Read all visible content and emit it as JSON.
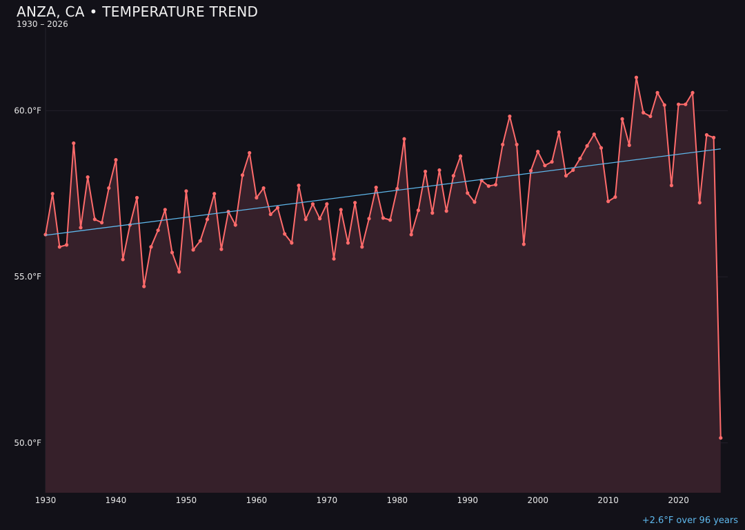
{
  "chart_data": {
    "type": "line",
    "title": "ANZA, CA • TEMPERATURE TREND",
    "subtitle": "1930 – 2026",
    "annotation": "+2.6°F over 96 years",
    "xlabel": "",
    "ylabel": "",
    "xlim": [
      1930,
      2027
    ],
    "ylim": [
      48.5,
      62.5
    ],
    "x_ticks": [
      "1930",
      "1940",
      "1950",
      "1960",
      "1970",
      "1980",
      "1990",
      "2000",
      "2010",
      "2020"
    ],
    "y_ticks": [
      "50.0°F",
      "55.0°F",
      "60.0°F"
    ],
    "grid": "horizontal",
    "colors": {
      "series": "#ff6b6b",
      "fill": "#36202a",
      "trend": "#5fb8ec",
      "background": "#121118"
    },
    "series": [
      {
        "x": [
          1930,
          1931,
          1932,
          1933,
          1934,
          1935,
          1936,
          1937,
          1938,
          1939,
          1940,
          1941,
          1942,
          1943,
          1944,
          1945,
          1946,
          1947,
          1948,
          1949,
          1950,
          1951,
          1952,
          1953,
          1954,
          1955,
          1956,
          1957,
          1958,
          1959,
          1960,
          1961,
          1962,
          1963,
          1964,
          1965,
          1966,
          1967,
          1968,
          1969,
          1970,
          1971,
          1972,
          1973,
          1974,
          1975,
          1976,
          1977,
          1978,
          1979,
          1980,
          1981,
          1982,
          1983,
          1984,
          1985,
          1986,
          1987,
          1988,
          1989,
          1990,
          1991,
          1992,
          1993,
          1994,
          1995,
          1996,
          1997,
          1998,
          1999,
          2000,
          2001,
          2002,
          2003,
          2004,
          2005,
          2006,
          2007,
          2008,
          2009,
          2010,
          2011,
          2012,
          2013,
          2014,
          2015,
          2016,
          2017,
          2018,
          2019,
          2020,
          2021,
          2022,
          2023,
          2024,
          2025,
          2026
        ],
        "values": [
          56.27,
          57.5,
          55.9,
          55.96,
          59.02,
          56.48,
          58.0,
          56.73,
          56.63,
          57.67,
          58.52,
          55.52,
          56.56,
          57.38,
          54.71,
          55.9,
          56.4,
          57.02,
          55.73,
          55.15,
          57.58,
          55.81,
          56.08,
          56.73,
          57.5,
          55.83,
          56.96,
          56.56,
          58.06,
          58.73,
          57.38,
          57.67,
          56.88,
          57.08,
          56.29,
          56.02,
          57.75,
          56.73,
          57.19,
          56.75,
          57.19,
          55.54,
          57.02,
          56.02,
          57.23,
          55.9,
          56.75,
          57.69,
          56.77,
          56.71,
          57.65,
          59.15,
          56.27,
          57.0,
          58.17,
          56.92,
          58.21,
          56.98,
          58.04,
          58.63,
          57.52,
          57.25,
          57.9,
          57.73,
          57.77,
          58.98,
          59.83,
          58.98,
          55.98,
          58.19,
          58.77,
          58.35,
          58.46,
          59.35,
          58.04,
          58.21,
          58.56,
          58.94,
          59.29,
          58.88,
          57.27,
          57.4,
          59.75,
          58.96,
          61.0,
          59.94,
          59.83,
          60.54,
          60.17,
          57.75,
          60.19,
          60.19,
          60.54,
          57.23,
          59.27,
          59.19,
          50.15
        ]
      }
    ],
    "trend": {
      "x": [
        1930,
        2026
      ],
      "values": [
        56.25,
        58.85
      ]
    }
  }
}
